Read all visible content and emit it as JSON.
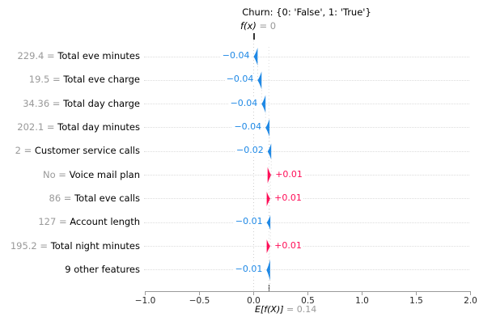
{
  "chart_data": {
    "type": "waterfall",
    "library_style": "shap-waterfall",
    "title": "Churn: {0: 'False', 1: 'True'}",
    "fx": {
      "label": "f(x)",
      "value_text": "= 0",
      "value": 0
    },
    "expected": {
      "label": "E[f(X)]",
      "value_text": "= 0.14",
      "value": 0.14
    },
    "xlabel": "",
    "ylabel": "",
    "xaxis": {
      "range": [
        -1.0,
        2.0
      ],
      "ticks": [
        {
          "v": -1.0,
          "label": "−1.0"
        },
        {
          "v": -0.5,
          "label": "−0.5"
        },
        {
          "v": 0.0,
          "label": "0.0"
        },
        {
          "v": 0.5,
          "label": "0.5"
        },
        {
          "v": 1.0,
          "label": "1.0"
        },
        {
          "v": 1.5,
          "label": "1.5"
        },
        {
          "v": 2.0,
          "label": "2.0"
        }
      ]
    },
    "colors": {
      "positive": "#ff0d57",
      "negative": "#1e88e5",
      "muted_text": "#999999",
      "grid_dotted": "#dcdcdc",
      "axis": "#9a9a9a"
    },
    "rows": [
      {
        "feature_value": "229.4",
        "feature": "Total eve minutes",
        "shap": -0.04,
        "shap_label": "−0.04"
      },
      {
        "feature_value": "19.5",
        "feature": "Total eve charge",
        "shap": -0.04,
        "shap_label": "−0.04"
      },
      {
        "feature_value": "34.36",
        "feature": "Total day charge",
        "shap": -0.04,
        "shap_label": "−0.04"
      },
      {
        "feature_value": "202.1",
        "feature": "Total day minutes",
        "shap": -0.04,
        "shap_label": "−0.04"
      },
      {
        "feature_value": "2",
        "feature": "Customer service calls",
        "shap": -0.02,
        "shap_label": "−0.02"
      },
      {
        "feature_value": "No",
        "feature": "Voice mail plan",
        "shap": 0.01,
        "shap_label": "+0.01"
      },
      {
        "feature_value": "86",
        "feature": "Total eve calls",
        "shap": 0.01,
        "shap_label": "+0.01"
      },
      {
        "feature_value": "127",
        "feature": "Account length",
        "shap": -0.01,
        "shap_label": "−0.01"
      },
      {
        "feature_value": "195.2",
        "feature": "Total night minutes",
        "shap": 0.01,
        "shap_label": "+0.01"
      },
      {
        "feature_value": "",
        "feature": "9 other features",
        "shap": -0.01,
        "shap_label": "−0.01"
      }
    ]
  }
}
